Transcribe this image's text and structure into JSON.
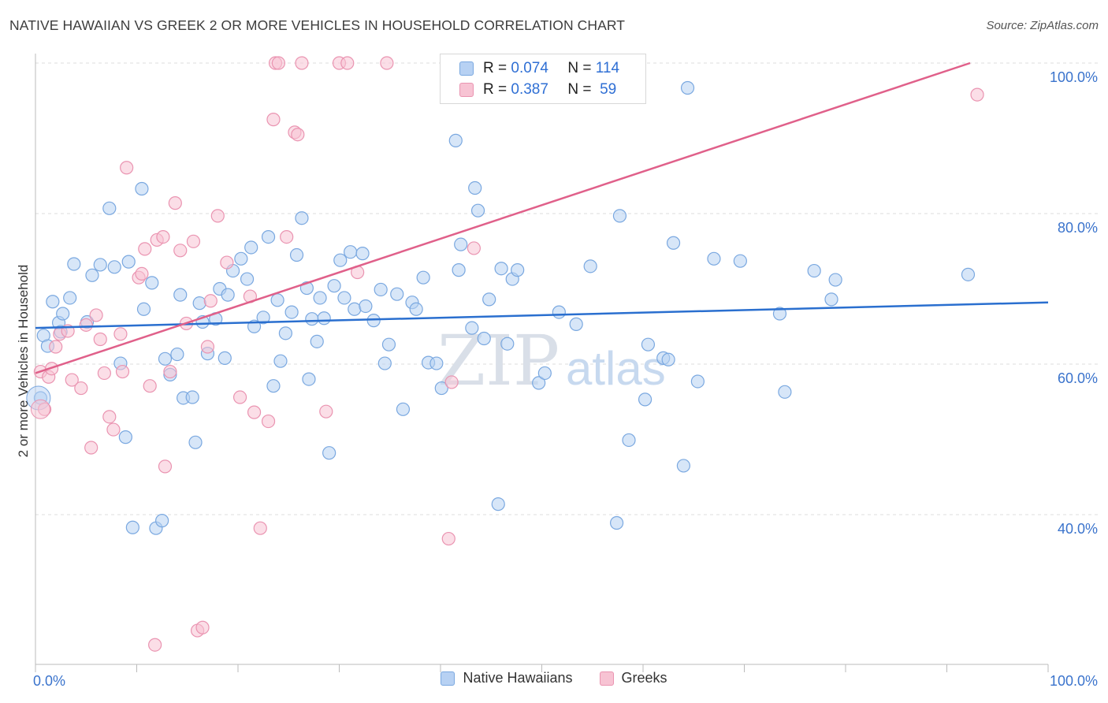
{
  "title": "NATIVE HAWAIIAN VS GREEK 2 OR MORE VEHICLES IN HOUSEHOLD CORRELATION CHART",
  "source": "Source: ZipAtlas.com",
  "watermark": {
    "zip": "ZIP",
    "atlas": "atlas"
  },
  "colors": {
    "blue_fill": "#b7d1f3",
    "blue_stroke": "#7aa8e0",
    "blue_line": "#2a6fcf",
    "pink_fill": "#f7c3d3",
    "pink_stroke": "#ea94b1",
    "pink_line": "#e0608a",
    "axis_text": "#3a73cc"
  },
  "legend": {
    "r_label": "R =",
    "n_label": "N =",
    "rows": [
      {
        "r": "0.074",
        "n": "114"
      },
      {
        "r": "0.387",
        "n": "59"
      }
    ]
  },
  "chart_data": {
    "type": "scatter",
    "title": "NATIVE HAWAIIAN VS GREEK 2 OR MORE VEHICLES IN HOUSEHOLD CORRELATION CHART",
    "xlabel": "",
    "ylabel": "2 or more Vehicles in Household",
    "xlim": [
      0,
      100
    ],
    "ylim": [
      20,
      101
    ],
    "x_tick_labels": [
      "0.0%",
      "100.0%"
    ],
    "y_tick_labels": [
      "40.0%",
      "60.0%",
      "80.0%",
      "100.0%"
    ],
    "y_ticks": [
      40,
      60,
      80,
      100
    ],
    "legend_position": "top-center",
    "series": [
      {
        "name": "Native Hawaiians",
        "trend": {
          "x": [
            0,
            100
          ],
          "y": [
            64.8,
            68.2
          ]
        },
        "points": [
          [
            0.5,
            55.5
          ],
          [
            0.8,
            63.8
          ],
          [
            1.2,
            62.4
          ],
          [
            1.7,
            68.3
          ],
          [
            2.3,
            65.5
          ],
          [
            2.5,
            64.3
          ],
          [
            2.7,
            66.7
          ],
          [
            3.4,
            68.8
          ],
          [
            3.8,
            73.3
          ],
          [
            5.1,
            65.6
          ],
          [
            5.6,
            71.8
          ],
          [
            6.4,
            73.2
          ],
          [
            7.3,
            80.7
          ],
          [
            7.8,
            72.9
          ],
          [
            8.4,
            60.1
          ],
          [
            8.9,
            50.3
          ],
          [
            9.2,
            73.6
          ],
          [
            9.6,
            38.3
          ],
          [
            10.5,
            83.3
          ],
          [
            10.7,
            67.3
          ],
          [
            11.5,
            70.8
          ],
          [
            11.9,
            38.2
          ],
          [
            12.5,
            39.2
          ],
          [
            12.8,
            60.7
          ],
          [
            13.3,
            58.6
          ],
          [
            14.0,
            61.3
          ],
          [
            14.3,
            69.2
          ],
          [
            14.6,
            55.5
          ],
          [
            15.5,
            55.6
          ],
          [
            15.8,
            49.6
          ],
          [
            16.2,
            68.1
          ],
          [
            16.5,
            65.6
          ],
          [
            17.0,
            61.4
          ],
          [
            17.8,
            66.0
          ],
          [
            18.2,
            70.0
          ],
          [
            18.7,
            60.8
          ],
          [
            19.0,
            69.2
          ],
          [
            19.5,
            72.4
          ],
          [
            20.3,
            74.0
          ],
          [
            20.9,
            71.3
          ],
          [
            21.3,
            75.5
          ],
          [
            21.6,
            65.0
          ],
          [
            22.5,
            66.2
          ],
          [
            23.0,
            76.9
          ],
          [
            23.5,
            57.1
          ],
          [
            23.9,
            68.5
          ],
          [
            24.2,
            60.4
          ],
          [
            24.7,
            64.1
          ],
          [
            25.3,
            66.9
          ],
          [
            25.8,
            74.5
          ],
          [
            26.3,
            79.4
          ],
          [
            26.8,
            70.1
          ],
          [
            27.3,
            66.0
          ],
          [
            27.8,
            63.0
          ],
          [
            28.1,
            68.8
          ],
          [
            28.5,
            66.1
          ],
          [
            29.0,
            48.2
          ],
          [
            29.5,
            70.4
          ],
          [
            30.1,
            73.8
          ],
          [
            30.5,
            68.8
          ],
          [
            31.1,
            74.9
          ],
          [
            31.5,
            67.3
          ],
          [
            32.3,
            74.7
          ],
          [
            32.6,
            67.7
          ],
          [
            33.4,
            65.8
          ],
          [
            34.1,
            69.9
          ],
          [
            34.5,
            60.1
          ],
          [
            34.9,
            62.6
          ],
          [
            35.7,
            69.3
          ],
          [
            36.3,
            54.0
          ],
          [
            37.2,
            68.2
          ],
          [
            37.6,
            67.3
          ],
          [
            38.3,
            71.5
          ],
          [
            38.8,
            60.2
          ],
          [
            39.6,
            60.1
          ],
          [
            40.1,
            56.8
          ],
          [
            41.5,
            89.7
          ],
          [
            41.8,
            72.5
          ],
          [
            42.0,
            75.9
          ],
          [
            43.1,
            64.8
          ],
          [
            43.4,
            83.4
          ],
          [
            43.7,
            80.4
          ],
          [
            44.3,
            63.4
          ],
          [
            44.8,
            68.6
          ],
          [
            45.7,
            41.4
          ],
          [
            46.0,
            72.7
          ],
          [
            46.6,
            62.7
          ],
          [
            47.1,
            71.3
          ],
          [
            47.6,
            72.5
          ],
          [
            49.7,
            57.5
          ],
          [
            50.3,
            58.8
          ],
          [
            51.7,
            66.9
          ],
          [
            53.4,
            65.3
          ],
          [
            54.8,
            73.0
          ],
          [
            57.4,
            38.9
          ],
          [
            57.7,
            79.7
          ],
          [
            58.6,
            49.9
          ],
          [
            60.2,
            55.3
          ],
          [
            60.5,
            62.6
          ],
          [
            62.0,
            60.8
          ],
          [
            62.5,
            60.6
          ],
          [
            63.0,
            76.1
          ],
          [
            64.0,
            46.5
          ],
          [
            64.4,
            96.7
          ],
          [
            65.4,
            57.7
          ],
          [
            67.0,
            74.0
          ],
          [
            69.6,
            73.7
          ],
          [
            73.5,
            66.7
          ],
          [
            74.0,
            56.3
          ],
          [
            76.9,
            72.4
          ],
          [
            78.6,
            68.6
          ],
          [
            79.0,
            71.2
          ],
          [
            92.1,
            71.9
          ],
          [
            27.0,
            58.0
          ]
        ]
      },
      {
        "name": "Greeks",
        "trend": {
          "x": [
            0,
            92.3
          ],
          "y": [
            58.8,
            100
          ]
        },
        "points": [
          [
            0.5,
            59.0
          ],
          [
            0.9,
            54.0
          ],
          [
            1.3,
            58.3
          ],
          [
            1.6,
            59.4
          ],
          [
            2.0,
            62.3
          ],
          [
            2.4,
            64.0
          ],
          [
            3.2,
            64.4
          ],
          [
            3.6,
            57.9
          ],
          [
            4.5,
            56.8
          ],
          [
            5.0,
            65.2
          ],
          [
            5.5,
            48.9
          ],
          [
            6.0,
            66.5
          ],
          [
            6.4,
            63.3
          ],
          [
            6.8,
            58.8
          ],
          [
            7.3,
            53.0
          ],
          [
            7.7,
            51.3
          ],
          [
            8.4,
            64.0
          ],
          [
            8.6,
            59.0
          ],
          [
            9.0,
            86.1
          ],
          [
            10.2,
            71.5
          ],
          [
            10.5,
            72.0
          ],
          [
            10.8,
            75.3
          ],
          [
            11.3,
            57.1
          ],
          [
            11.8,
            22.7
          ],
          [
            12.0,
            76.5
          ],
          [
            12.6,
            76.9
          ],
          [
            12.8,
            46.4
          ],
          [
            13.3,
            59.0
          ],
          [
            13.8,
            81.4
          ],
          [
            14.3,
            75.1
          ],
          [
            14.9,
            65.4
          ],
          [
            15.6,
            76.3
          ],
          [
            16.0,
            24.6
          ],
          [
            16.5,
            25.0
          ],
          [
            17.0,
            62.3
          ],
          [
            17.3,
            68.4
          ],
          [
            18.0,
            79.7
          ],
          [
            18.9,
            73.5
          ],
          [
            20.2,
            55.6
          ],
          [
            21.2,
            69.0
          ],
          [
            21.6,
            53.6
          ],
          [
            22.2,
            38.2
          ],
          [
            23.0,
            52.4
          ],
          [
            23.5,
            92.5
          ],
          [
            23.7,
            100.0
          ],
          [
            24.0,
            100.0
          ],
          [
            24.8,
            76.9
          ],
          [
            25.6,
            90.8
          ],
          [
            25.9,
            90.5
          ],
          [
            26.3,
            100.0
          ],
          [
            28.7,
            53.7
          ],
          [
            30.0,
            100.0
          ],
          [
            30.8,
            100.0
          ],
          [
            31.8,
            72.2
          ],
          [
            34.7,
            100.0
          ],
          [
            40.8,
            36.8
          ],
          [
            41.1,
            57.6
          ],
          [
            43.3,
            75.4
          ],
          [
            93.0,
            95.8
          ]
        ]
      }
    ]
  },
  "bottom_legend": [
    "Native Hawaiians",
    "Greeks"
  ]
}
